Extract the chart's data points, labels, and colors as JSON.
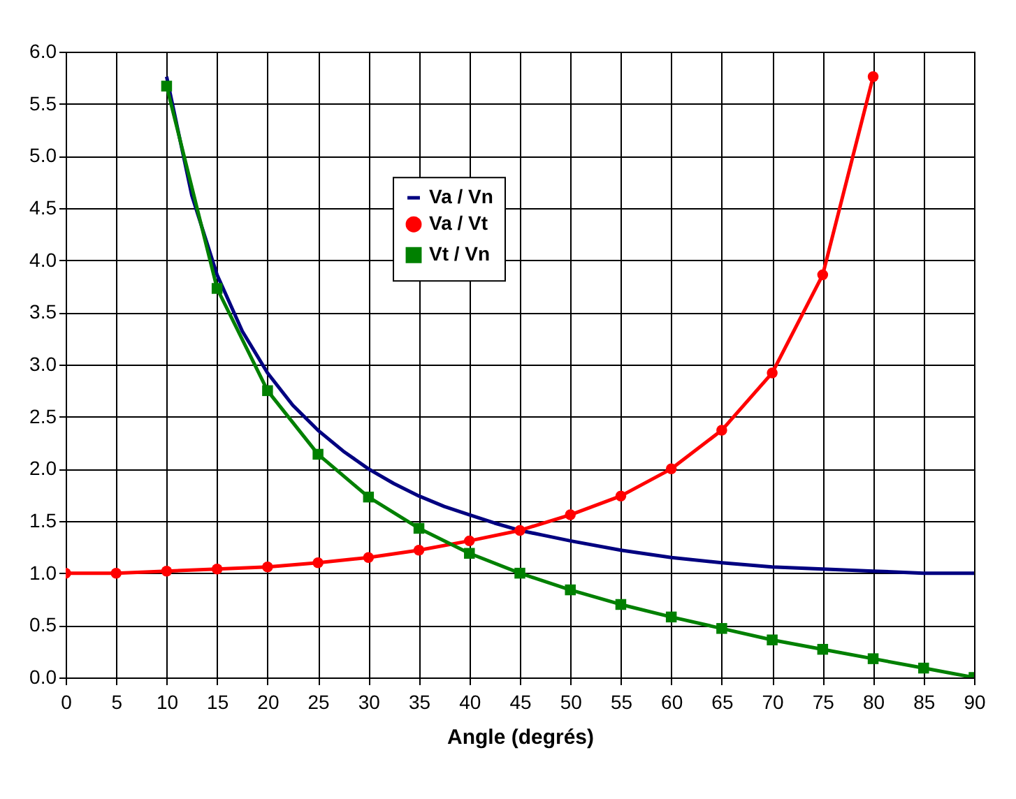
{
  "chart_data": {
    "type": "line",
    "xlabel": "Angle (degrés)",
    "xlim": [
      0,
      90
    ],
    "xticks": [
      0,
      5,
      10,
      15,
      20,
      25,
      30,
      35,
      40,
      45,
      50,
      55,
      60,
      65,
      70,
      75,
      80,
      85,
      90
    ],
    "ylim": [
      0,
      6
    ],
    "yticks": [
      {
        "value": 0,
        "label": "0.0"
      },
      {
        "value": 0.5,
        "label": "0.5"
      },
      {
        "value": 1,
        "label": "1.0"
      },
      {
        "value": 1.5,
        "label": "1.5"
      },
      {
        "value": 2,
        "label": "2.0"
      },
      {
        "value": 2.5,
        "label": "2.5"
      },
      {
        "value": 3,
        "label": "3.0"
      },
      {
        "value": 3.5,
        "label": "3.5"
      },
      {
        "value": 4,
        "label": "4.0"
      },
      {
        "value": 4.5,
        "label": "4.5"
      },
      {
        "value": 5,
        "label": "5.0"
      },
      {
        "value": 5.5,
        "label": "5.5"
      },
      {
        "value": 6,
        "label": "6.0"
      }
    ],
    "grid": true,
    "legend": "top",
    "line_style": "solid",
    "series": [
      {
        "name": "Va / Vn",
        "color": "#000080",
        "marker": "none",
        "x": [
          10,
          12.5,
          15,
          17.5,
          20,
          22.5,
          25,
          27.5,
          30,
          32.5,
          35,
          37.5,
          40,
          42.5,
          45,
          47.5,
          50,
          55,
          60,
          65,
          70,
          75,
          80,
          85,
          90
        ],
        "values": [
          5.76,
          4.62,
          3.86,
          3.32,
          2.92,
          2.61,
          2.37,
          2.17,
          2.0,
          1.86,
          1.74,
          1.64,
          1.56,
          1.48,
          1.41,
          1.36,
          1.31,
          1.22,
          1.15,
          1.1,
          1.06,
          1.04,
          1.02,
          1.0,
          1.0
        ]
      },
      {
        "name": "Va / Vt",
        "color": "#ff0000",
        "marker": "circle",
        "x": [
          0,
          5,
          10,
          15,
          20,
          25,
          30,
          35,
          40,
          45,
          50,
          55,
          60,
          65,
          70,
          75,
          80
        ],
        "values": [
          1.0,
          1.0,
          1.02,
          1.04,
          1.06,
          1.1,
          1.15,
          1.22,
          1.31,
          1.41,
          1.56,
          1.74,
          2.0,
          2.37,
          2.92,
          3.86,
          5.76
        ]
      },
      {
        "name": "Vt / Vn",
        "color": "#008000",
        "marker": "square",
        "x": [
          10,
          15,
          20,
          25,
          30,
          35,
          40,
          45,
          50,
          55,
          60,
          65,
          70,
          75,
          80,
          85,
          90
        ],
        "values": [
          5.67,
          3.73,
          2.75,
          2.14,
          1.73,
          1.43,
          1.19,
          1.0,
          0.84,
          0.7,
          0.58,
          0.47,
          0.36,
          0.27,
          0.18,
          0.09,
          0.0
        ]
      }
    ]
  }
}
